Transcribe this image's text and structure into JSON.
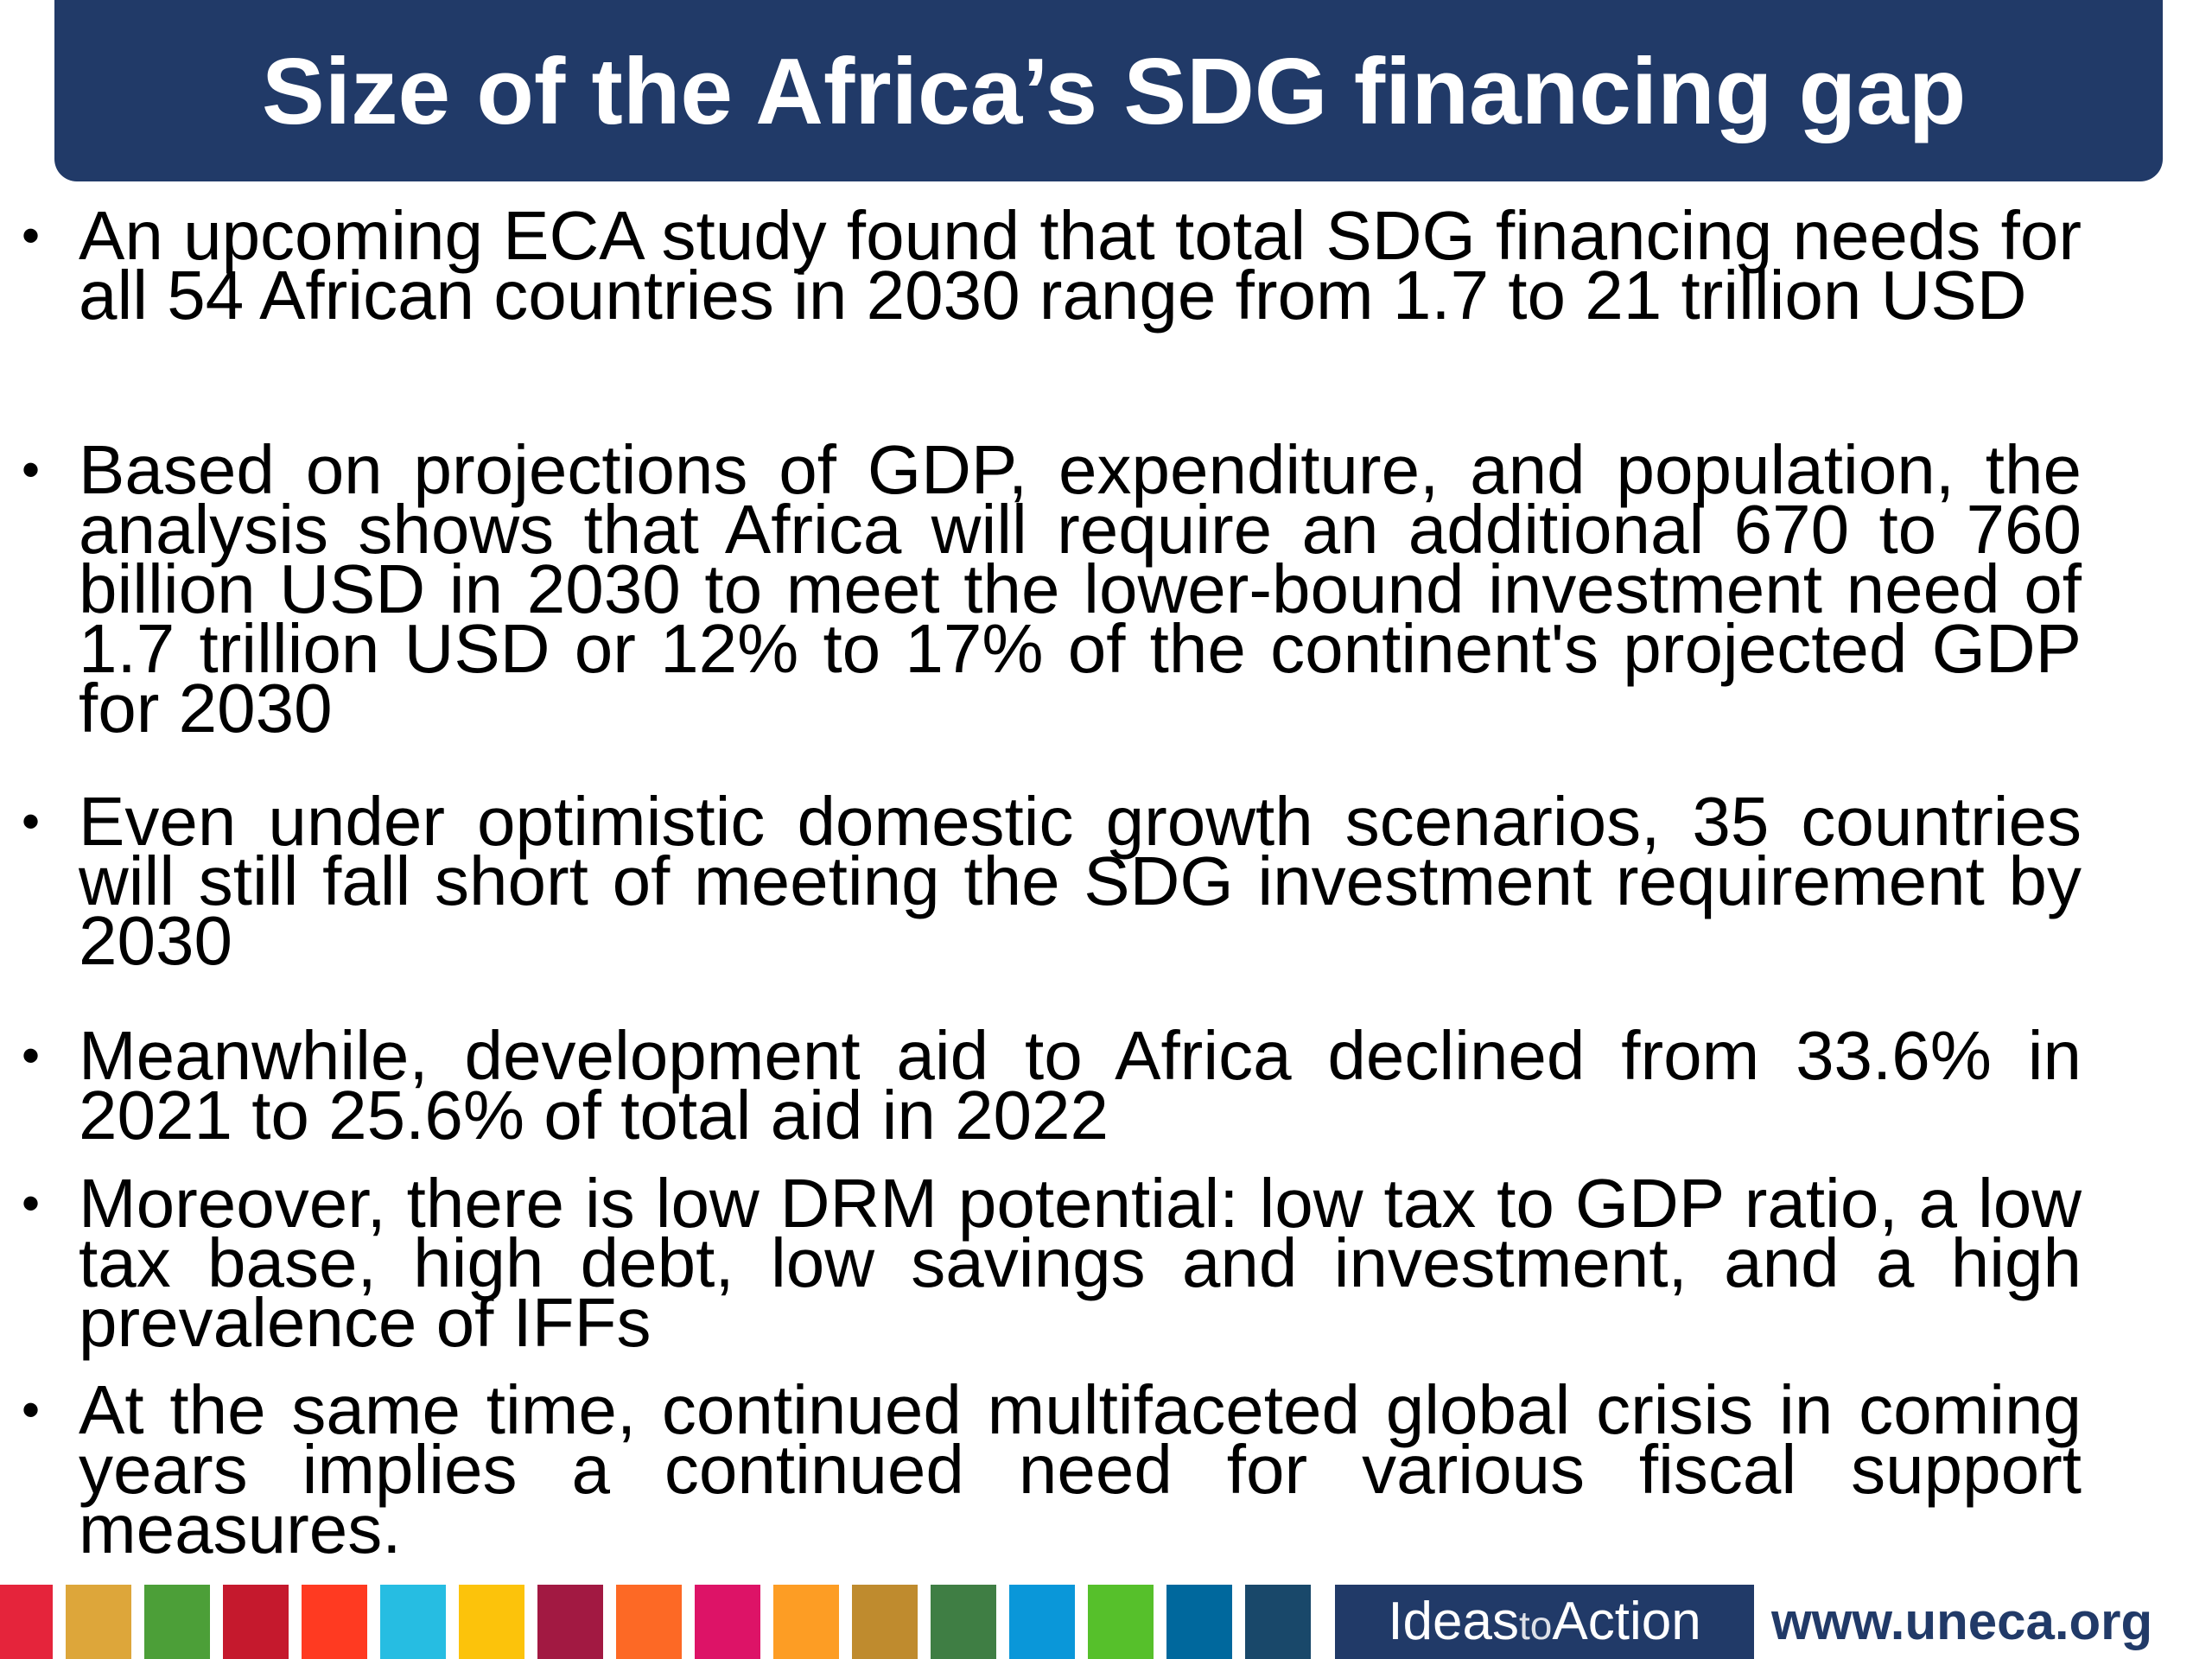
{
  "title": "Size of the Africa’s SDG financing gap",
  "bullet_symbol": "•",
  "bullets": [
    "An upcoming ECA study found that total SDG financing needs for all 54 African countries in 2030 range from 1.7 to 21 trillion USD",
    "Based on projections of GDP, expenditure, and population, the analysis shows that Africa will require an additional 670 to 760 billion USD in 2030 to meet the lower-bound investment need of 1.7 trillion USD or 12% to 17% of the continent's projected GDP for 2030",
    "Even under optimistic domestic growth scenarios, 35 countries will still fall short of meeting the SDG investment requirement by 2030",
    "Meanwhile, development aid to Africa declined from 33.6% in 2021 to 25.6% of total aid in 2022",
    "Moreover, there is low DRM potential: low tax to GDP ratio, a low tax base, high debt, low savings and investment, and a high prevalence of IFFs",
    "At the same time, continued multifaceted global crisis in coming years implies a continued need for various fiscal support measures."
  ],
  "footer": {
    "ideas_part1": "Ideas",
    "ideas_part2": "to",
    "ideas_part3": "Action",
    "website": "www.uneca.org",
    "sdg_colors": [
      "#e5243b",
      "#dda63a",
      "#4c9f38",
      "#c5192d",
      "#ff3a21",
      "#26bde2",
      "#fcc30b",
      "#a21942",
      "#fd6925",
      "#dd1367",
      "#fd9d24",
      "#bf8b2e",
      "#3f7e44",
      "#0a97d9",
      "#56c02b",
      "#00689d",
      "#19486a"
    ]
  },
  "colors": {
    "title_bar": "#213a68",
    "title_text": "#ffffff",
    "body_text": "#000000"
  }
}
